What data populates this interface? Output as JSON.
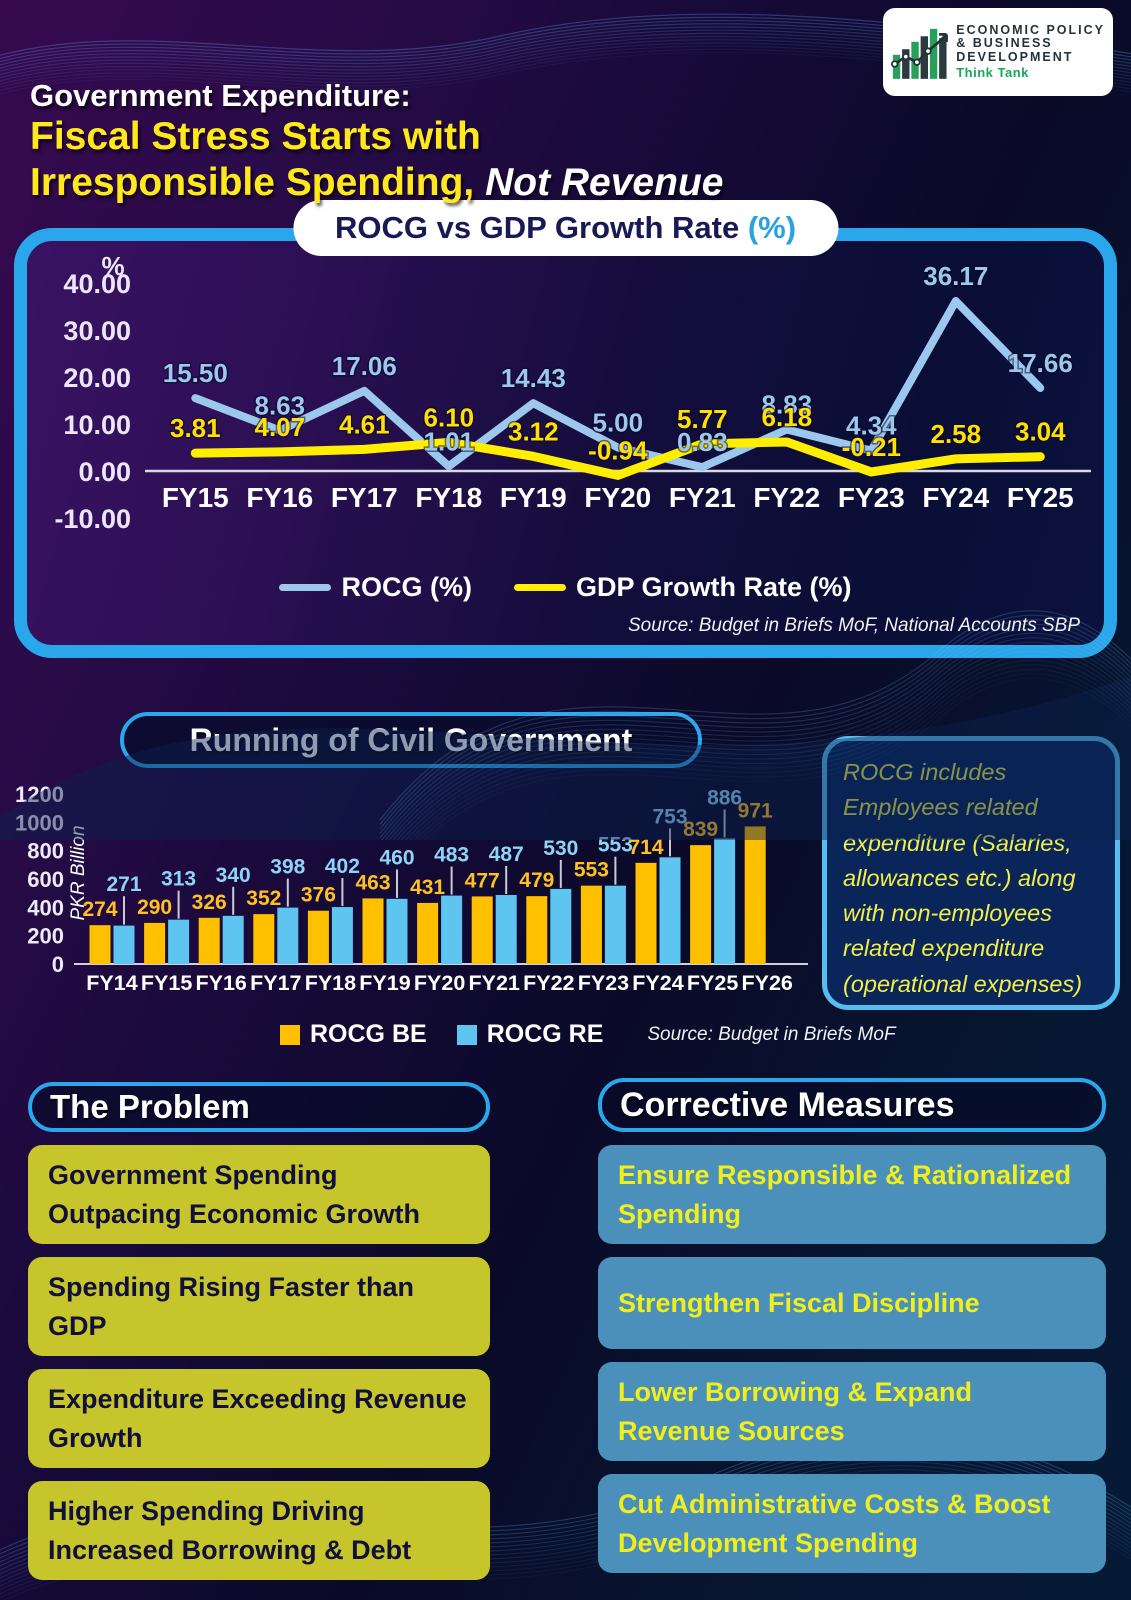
{
  "logo": {
    "line1": "ECONOMIC POLICY",
    "line2": "& BUSINESS",
    "line3": "DEVELOPMENT",
    "tagline": "Think Tank"
  },
  "header": {
    "title_line1": "Government Expenditure:",
    "title_line2": "Fiscal Stress Starts with",
    "title_line3": "Irresponsible Spending, ",
    "title_line3_em": "Not Revenue"
  },
  "colors": {
    "accent_blue": "#2aa7ea",
    "rocg_line": "#9cc8ee",
    "gdp_line": "#ffee00",
    "bar_be": "#ffc000",
    "bar_re": "#5ec4f0",
    "problem_bg": "#c7c52c",
    "measure_bg": "#4a90bb"
  },
  "note": {
    "text": "ROCG includes Employees related expenditure (Salaries, allowances etc.) along with non-employees related expenditure (operational expenses)"
  },
  "problem": {
    "title": "The Problem",
    "items": [
      "Government Spending Outpacing Economic Growth",
      "Spending Rising Faster than GDP",
      "Expenditure Exceeding Revenue Growth",
      "Higher Spending Driving Increased Borrowing & Debt"
    ]
  },
  "measures": {
    "title": "Corrective Measures",
    "items": [
      "Ensure Responsible & Rationalized Spending",
      "Strengthen Fiscal Discipline",
      "Lower Borrowing & Expand Revenue Sources",
      "Cut Administrative Costs & Boost Development Spending"
    ]
  },
  "chart_data": [
    {
      "type": "line",
      "title": "ROCG vs GDP Growth Rate (%)",
      "title_text": "ROCG vs GDP Growth Rate ",
      "title_pct": "(%)",
      "y_unit": "%",
      "categories": [
        "FY15",
        "FY16",
        "FY17",
        "FY18",
        "FY19",
        "FY20",
        "FY21",
        "FY22",
        "FY23",
        "FY24",
        "FY25"
      ],
      "series": [
        {
          "name": "ROCG (%)",
          "color": "#9cc8ee",
          "values": [
            15.5,
            8.63,
            17.06,
            1.01,
            14.43,
            5.0,
            0.83,
            8.83,
            4.34,
            36.17,
            17.66
          ]
        },
        {
          "name": "GDP Growth Rate (%)",
          "color": "#ffee00",
          "values": [
            3.81,
            4.07,
            4.61,
            6.1,
            3.12,
            -0.94,
            5.77,
            6.18,
            -0.21,
            2.58,
            3.04
          ]
        }
      ],
      "ylim": [
        -10,
        40
      ],
      "yticks": [
        40,
        30,
        20,
        10,
        0,
        -10
      ],
      "grid": false,
      "legend_position": "bottom",
      "source": "Source: Budget in Briefs MoF, National Accounts SBP"
    },
    {
      "type": "bar",
      "title": "Running of Civil Government",
      "ylabel": "PKR Billion",
      "categories": [
        "FY14",
        "FY15",
        "FY16",
        "FY17",
        "FY18",
        "FY19",
        "FY20",
        "FY21",
        "FY22",
        "FY23",
        "FY24",
        "FY25",
        "FY26"
      ],
      "series": [
        {
          "name": "ROCG BE",
          "color": "#ffc000",
          "values": [
            274,
            290,
            326,
            352,
            376,
            463,
            431,
            477,
            479,
            553,
            714,
            839,
            971
          ]
        },
        {
          "name": "ROCG RE",
          "color": "#5ec4f0",
          "values": [
            271,
            313,
            340,
            398,
            402,
            460,
            483,
            487,
            530,
            553,
            753,
            886,
            null
          ]
        }
      ],
      "ylim": [
        0,
        1200
      ],
      "yticks": [
        1200,
        1000,
        800,
        600,
        400,
        200,
        0
      ],
      "grid": false,
      "legend_position": "bottom",
      "source": "Source: Budget in Briefs MoF"
    }
  ]
}
